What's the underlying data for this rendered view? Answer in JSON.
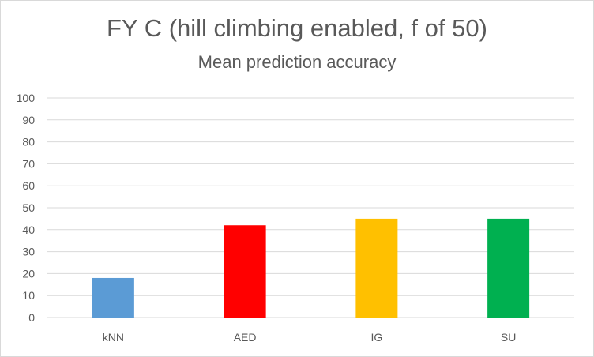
{
  "chart_data": {
    "type": "bar",
    "title": "FY C (hill climbing enabled, f of 50)",
    "subtitle": "Mean prediction accuracy",
    "categories": [
      "kNN",
      "AED",
      "IG",
      "SU"
    ],
    "values": [
      18,
      42,
      45,
      45
    ],
    "colors": [
      "#5b9bd5",
      "#ff0000",
      "#ffc000",
      "#00b050"
    ],
    "ylim": [
      0,
      100
    ],
    "yticks": [
      "0",
      "10",
      "20",
      "30",
      "40",
      "50",
      "60",
      "70",
      "80",
      "90",
      "100"
    ],
    "xlabel": "",
    "ylabel": "",
    "grid": true,
    "gridline_color": "#d9d9d9",
    "text_color": "#595959",
    "legend": "none"
  }
}
